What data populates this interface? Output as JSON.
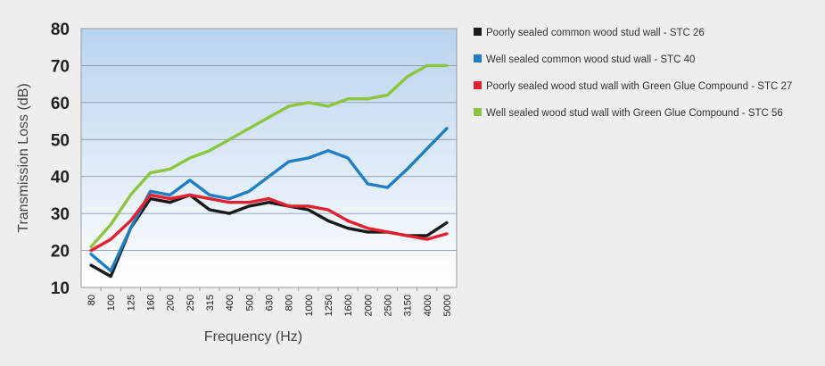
{
  "chart_data": {
    "type": "line",
    "title": "",
    "xlabel": "Frequency (Hz)",
    "ylabel": "Transmission Loss (dB)",
    "ylim": [
      10,
      80
    ],
    "yticks": [
      "10",
      "20",
      "30",
      "40",
      "50",
      "60",
      "70",
      "80"
    ],
    "grid": true,
    "legend_position": "right",
    "categories": [
      "80",
      "100",
      "125",
      "160",
      "200",
      "250",
      "315",
      "400",
      "500",
      "630",
      "800",
      "1000",
      "1250",
      "1600",
      "2000",
      "2500",
      "3150",
      "4000",
      "5000"
    ],
    "series": [
      {
        "name": "Poorly sealed common wood stud wall - STC 26",
        "color": "#1a1a1a",
        "values": [
          16,
          13,
          26,
          34,
          33,
          35,
          31,
          30,
          32,
          33,
          32,
          31,
          28,
          26,
          25,
          25,
          24,
          24,
          27.5
        ]
      },
      {
        "name": "Well sealed common wood stud wall - STC 40",
        "color": "#1e7fc3",
        "values": [
          19,
          14.5,
          26,
          36,
          35,
          39,
          35,
          34,
          36,
          40,
          44,
          45,
          47,
          45,
          38,
          37,
          42,
          47.5,
          53
        ]
      },
      {
        "name": "Poorly sealed wood stud wall with Green Glue Compound - STC 27",
        "color": "#e3202e",
        "values": [
          20,
          23,
          28,
          35,
          34,
          35,
          34,
          33,
          33,
          34,
          32,
          32,
          31,
          28,
          26,
          25,
          24,
          23,
          24.5
        ]
      },
      {
        "name": "Well sealed wood stud wall with Green Glue Compound - STC 56",
        "color": "#8cc63e",
        "values": [
          21,
          27,
          35,
          41,
          42,
          45,
          47,
          50,
          53,
          56,
          59,
          60,
          59,
          61,
          61,
          62,
          67,
          70,
          70
        ]
      }
    ]
  }
}
